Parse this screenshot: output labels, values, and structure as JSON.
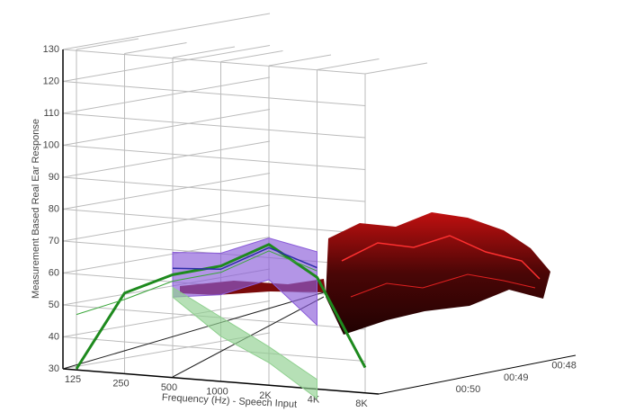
{
  "chart_data": {
    "type": "line",
    "y_label": "Measurement Based Real Ear Response",
    "x_label": "Frequency (Hz) - Speech Input",
    "categories": [
      "125",
      "250",
      "500",
      "1000",
      "2K",
      "4K",
      "8K"
    ],
    "z_categories": [
      "00:50",
      "00:49",
      "00:48"
    ],
    "ylim": [
      30,
      130
    ],
    "yticks": [
      30,
      40,
      50,
      60,
      70,
      80,
      90,
      100,
      110,
      120,
      130
    ],
    "grid": true,
    "series": [
      {
        "color": "#1e8a1e",
        "width": 3,
        "values": [
          30,
          55,
          62,
          66,
          74,
          65,
          38
        ]
      },
      {
        "color": "#3aa63a",
        "width": 1,
        "values": [
          47,
          53,
          60,
          64,
          72,
          67,
          null
        ]
      },
      {
        "color": "#2c2ca8",
        "width": 1.5,
        "values": [
          null,
          null,
          64,
          65,
          73,
          68,
          null
        ]
      }
    ],
    "bands": [
      {
        "color": "#8a5cd8",
        "low": [
          null,
          null,
          55,
          57,
          63,
          50,
          null
        ],
        "high": [
          null,
          null,
          69,
          70,
          76,
          73,
          null
        ]
      },
      {
        "color": "#8fd08f",
        "low": [
          null,
          null,
          55,
          44,
          37,
          27,
          null
        ],
        "high": [
          null,
          null,
          58,
          50,
          42,
          33,
          null
        ]
      }
    ]
  }
}
